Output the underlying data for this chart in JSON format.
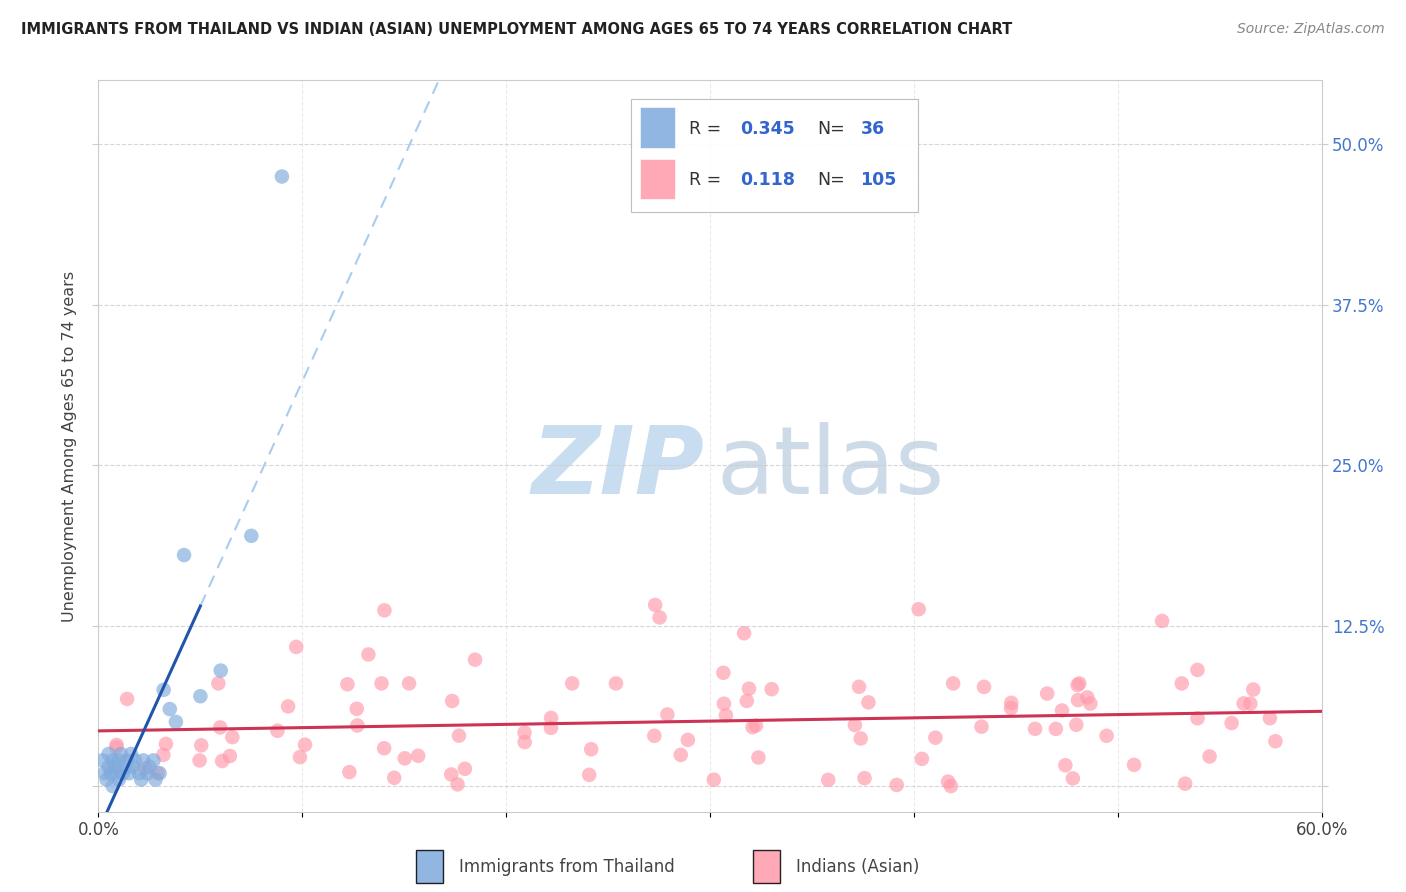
{
  "title": "IMMIGRANTS FROM THAILAND VS INDIAN (ASIAN) UNEMPLOYMENT AMONG AGES 65 TO 74 YEARS CORRELATION CHART",
  "source": "Source: ZipAtlas.com",
  "ylabel": "Unemployment Among Ages 65 to 74 years",
  "xlim": [
    0.0,
    0.6
  ],
  "ylim": [
    -0.02,
    0.55
  ],
  "thailand_R": 0.345,
  "thailand_N": 36,
  "indian_R": 0.118,
  "indian_N": 105,
  "thailand_color": "#7faadd",
  "indian_color": "#ff99aa",
  "thailand_line_color": "#2255aa",
  "indian_line_color": "#cc3355",
  "dashed_line_color": "#aaccee",
  "background_color": "#ffffff",
  "grid_color": "#cccccc",
  "right_axis_color": "#4477cc",
  "title_color": "#222222",
  "source_color": "#888888",
  "legend_text_color": "#333333",
  "legend_value_color": "#3366cc"
}
